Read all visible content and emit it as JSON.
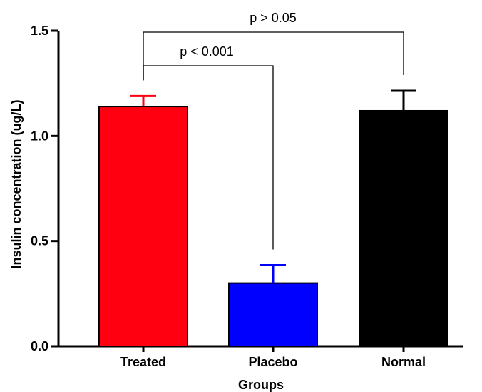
{
  "chart_data": {
    "type": "bar",
    "categories": [
      "Treated",
      "Placebo",
      "Normal"
    ],
    "values": [
      1.14,
      0.3,
      1.12
    ],
    "errors": [
      0.05,
      0.085,
      0.095
    ],
    "colors": [
      "#ff0010",
      "#0000ff",
      "#000000"
    ],
    "xlabel": "Groups",
    "ylabel": "Insulin concentration (ug/L)",
    "ylim": [
      0,
      1.5
    ],
    "yticks": [
      "0.0",
      "0.5",
      "1.0",
      "1.5"
    ],
    "ytick_values": [
      0,
      0.5,
      1.0,
      1.5
    ],
    "grid": false,
    "annotations": [
      {
        "label": "p < 0.001",
        "from": "Treated",
        "to": "Placebo"
      },
      {
        "label": "p > 0.05",
        "from": "Treated",
        "to": "Normal"
      }
    ]
  }
}
